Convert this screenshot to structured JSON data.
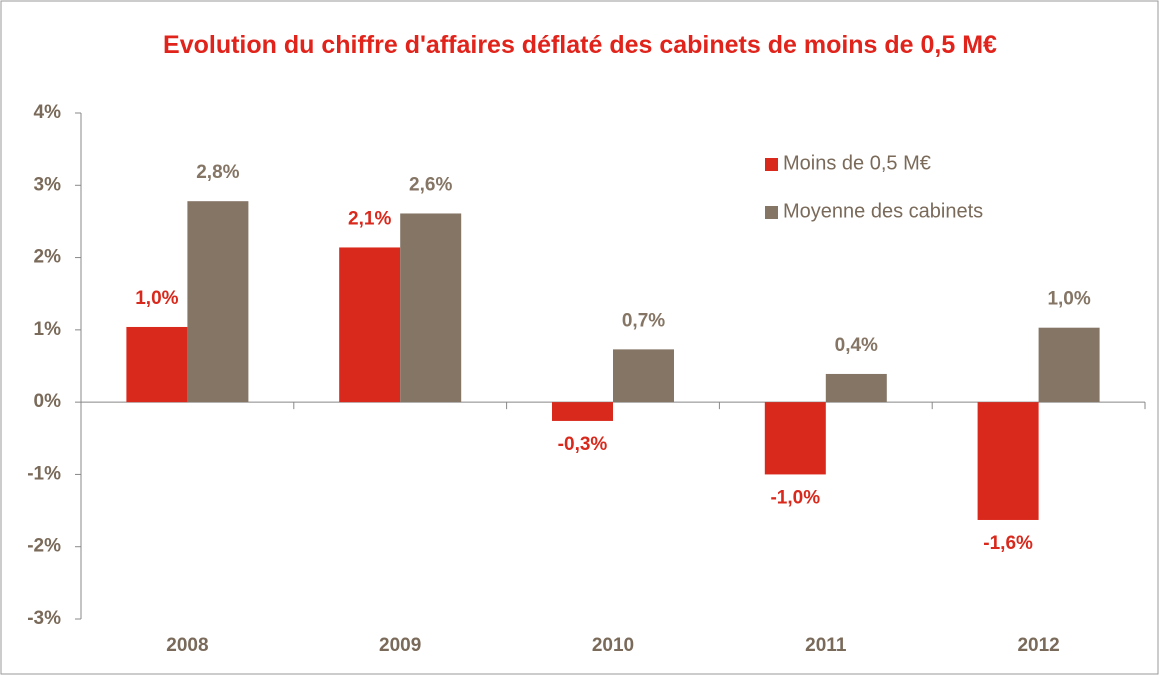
{
  "chart_data": {
    "type": "bar",
    "title": "Evolution du chiffre d'affaires déflaté des cabinets de moins de 0,5 M€",
    "categories": [
      "2008",
      "2009",
      "2010",
      "2011",
      "2012"
    ],
    "series": [
      {
        "name": "Moins de 0,5 M€",
        "color": "#d9291c",
        "values": [
          1.04,
          2.14,
          -0.26,
          -1.0,
          -1.63
        ],
        "value_labels": [
          "1,0%",
          "2,1%",
          "-0,3%",
          "-1,0%",
          "-1,6%"
        ]
      },
      {
        "name": "Moyenne des cabinets",
        "color": "#857565",
        "values": [
          2.78,
          2.61,
          0.73,
          0.39,
          1.03
        ],
        "value_labels": [
          "2,8%",
          "2,6%",
          "0,7%",
          "0,4%",
          "1,0%"
        ]
      }
    ],
    "ylim": [
      -3,
      4
    ],
    "yticks": [
      {
        "value": -3,
        "label": "-3%"
      },
      {
        "value": -2,
        "label": "-2%"
      },
      {
        "value": -1,
        "label": "-1%"
      },
      {
        "value": 0,
        "label": "0%"
      },
      {
        "value": 1,
        "label": "1%"
      },
      {
        "value": 2,
        "label": "2%"
      },
      {
        "value": 3,
        "label": "3%"
      },
      {
        "value": 4,
        "label": "4%"
      }
    ],
    "legend": "upper right",
    "grid": false
  }
}
